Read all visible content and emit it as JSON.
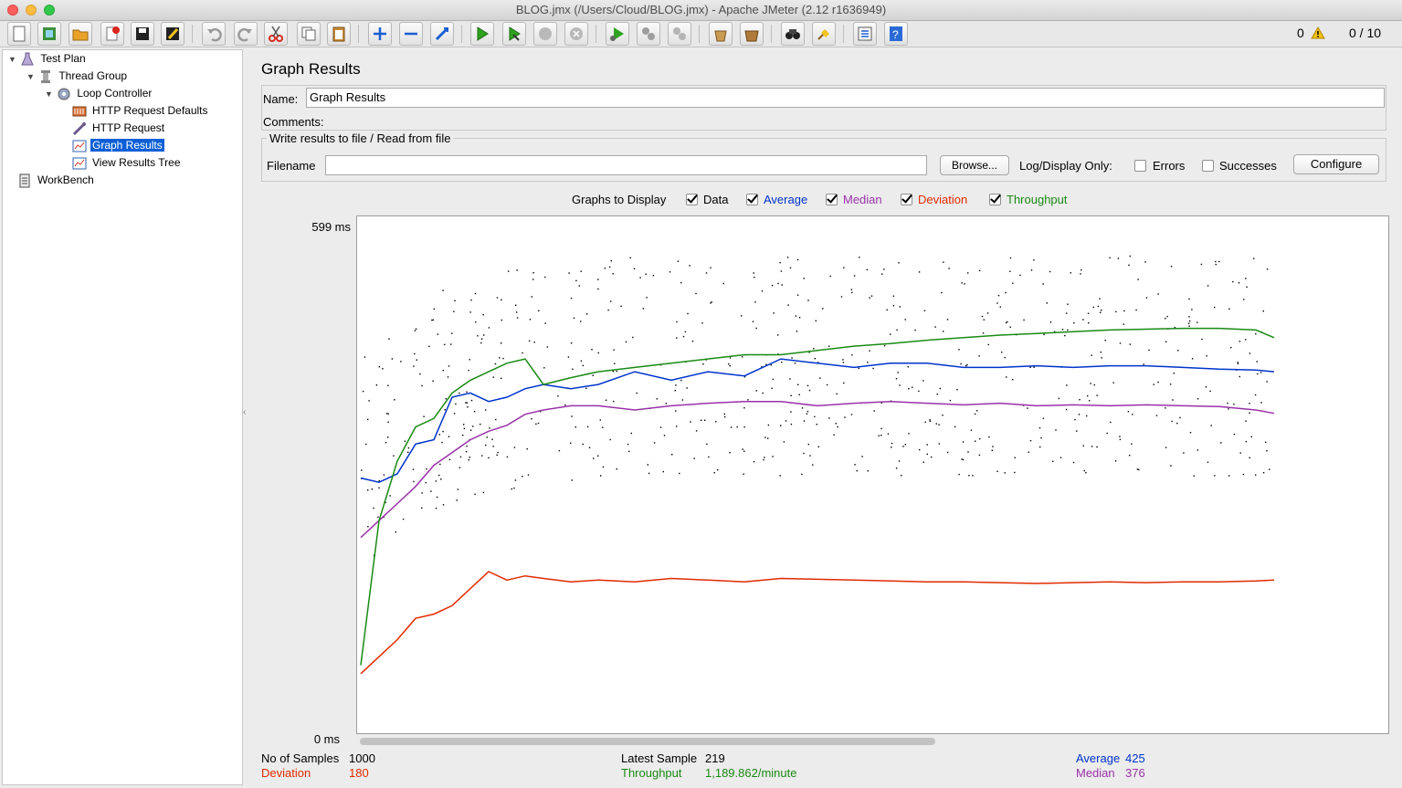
{
  "window": {
    "title": "BLOG.jmx (/Users/Cloud/BLOG.jmx) - Apache JMeter (2.12 r1636949)"
  },
  "toolbar": {
    "error_count": "0",
    "active_threads": "0 / 10",
    "buttons": [
      "new-icon",
      "templates-icon",
      "open-icon",
      "close-icon",
      "save-icon",
      "save-as-icon",
      "undo-icon",
      "redo-icon",
      "cut-icon",
      "copy-icon",
      "paste-icon",
      "expand-icon",
      "collapse-icon",
      "toggle-icon",
      "start-icon",
      "start-no-pause-icon",
      "stop-icon",
      "shutdown-icon",
      "remote-start-icon",
      "remote-stop-icon",
      "remote-shutdown-icon",
      "clear-icon",
      "clear-all-icon",
      "search-icon",
      "reset-search-icon",
      "function-helper-icon",
      "help-icon"
    ]
  },
  "tree": {
    "items": [
      {
        "label": "Test Plan",
        "icon": "flask-icon"
      },
      {
        "label": "Thread Group",
        "icon": "spool-icon"
      },
      {
        "label": "Loop Controller",
        "icon": "gear-icon"
      },
      {
        "label": "HTTP Request Defaults",
        "icon": "tools-icon"
      },
      {
        "label": "HTTP Request",
        "icon": "pipette-icon"
      },
      {
        "label": "Graph Results",
        "icon": "graph-icon"
      },
      {
        "label": "View Results Tree",
        "icon": "graph-icon"
      },
      {
        "label": "WorkBench",
        "icon": "clipboard-icon"
      }
    ],
    "selected": "Graph Results"
  },
  "panel": {
    "title": "Graph Results",
    "name_label": "Name:",
    "name_value": "Graph Results",
    "comments_label": "Comments:",
    "file_section": "Write results to file / Read from file",
    "filename_label": "Filename",
    "filename_value": "",
    "browse_label": "Browse...",
    "log_display_label": "Log/Display Only:",
    "errors_label": "Errors",
    "successes_label": "Successes",
    "configure_label": "Configure",
    "graphs_to_display_label": "Graphs to Display",
    "graph_options": [
      {
        "label": "Data",
        "checked": true,
        "color": "#000000"
      },
      {
        "label": "Average",
        "checked": true,
        "color": "#0033cc"
      },
      {
        "label": "Median",
        "checked": true,
        "color": "#9932a8"
      },
      {
        "label": "Deviation",
        "checked": true,
        "color": "#e02b00"
      },
      {
        "label": "Throughput",
        "checked": true,
        "color": "#1a8a14"
      }
    ]
  },
  "chart_data": {
    "type": "line",
    "xlabel": "",
    "ylabel": "",
    "y_max_label": "599 ms",
    "y_min_label": "0 ms",
    "ylim": [
      0,
      599
    ],
    "x_samples": 1000,
    "series": [
      {
        "name": "Average",
        "color": "#0033cc",
        "x": [
          0,
          20,
          40,
          60,
          80,
          100,
          120,
          140,
          160,
          180,
          200,
          230,
          260,
          300,
          340,
          380,
          420,
          460,
          500,
          540,
          580,
          620,
          660,
          700,
          740,
          780,
          820,
          860,
          900,
          940,
          980,
          1000
        ],
        "y": [
          300,
          295,
          305,
          340,
          345,
          395,
          400,
          390,
          395,
          405,
          410,
          405,
          410,
          425,
          415,
          425,
          420,
          440,
          435,
          430,
          435,
          435,
          430,
          430,
          432,
          430,
          432,
          432,
          430,
          428,
          427,
          425
        ]
      },
      {
        "name": "Median",
        "color": "#9932a8",
        "x": [
          0,
          20,
          40,
          60,
          80,
          100,
          120,
          140,
          160,
          180,
          200,
          230,
          260,
          300,
          340,
          380,
          420,
          460,
          500,
          540,
          580,
          620,
          660,
          700,
          740,
          780,
          820,
          860,
          900,
          940,
          980,
          1000
        ],
        "y": [
          230,
          250,
          270,
          290,
          315,
          330,
          345,
          355,
          362,
          375,
          380,
          385,
          385,
          380,
          385,
          388,
          390,
          390,
          385,
          388,
          390,
          388,
          386,
          388,
          385,
          386,
          385,
          386,
          385,
          384,
          380,
          376
        ]
      },
      {
        "name": "Deviation",
        "color": "#e02b00",
        "x": [
          0,
          20,
          40,
          60,
          80,
          100,
          120,
          140,
          160,
          180,
          200,
          230,
          260,
          300,
          340,
          380,
          420,
          460,
          500,
          540,
          580,
          620,
          660,
          700,
          740,
          780,
          820,
          860,
          900,
          940,
          980,
          1000
        ],
        "y": [
          70,
          90,
          110,
          135,
          140,
          150,
          170,
          190,
          180,
          185,
          182,
          178,
          180,
          178,
          182,
          180,
          178,
          182,
          181,
          180,
          179,
          178,
          178,
          177,
          176,
          177,
          178,
          177,
          178,
          178,
          179,
          180
        ]
      },
      {
        "name": "Throughput",
        "color": "#1a8a14",
        "x": [
          0,
          20,
          40,
          60,
          80,
          100,
          120,
          140,
          160,
          180,
          200,
          230,
          260,
          300,
          340,
          380,
          420,
          460,
          500,
          540,
          580,
          620,
          660,
          700,
          740,
          780,
          820,
          860,
          900,
          940,
          980,
          1000
        ],
        "y": [
          80,
          250,
          320,
          360,
          370,
          400,
          415,
          425,
          435,
          440,
          410,
          418,
          425,
          430,
          435,
          440,
          445,
          445,
          450,
          455,
          458,
          462,
          465,
          468,
          470,
          472,
          474,
          475,
          476,
          476,
          474,
          465
        ]
      }
    ]
  },
  "stats": {
    "samples_label": "No of Samples",
    "samples_value": "1000",
    "latest_label": "Latest Sample",
    "latest_value": "219",
    "average_label": "Average",
    "average_value": "425",
    "deviation_label": "Deviation",
    "deviation_value": "180",
    "throughput_label": "Throughput",
    "throughput_value": "1,189.862/minute",
    "median_label": "Median",
    "median_value": "376"
  }
}
